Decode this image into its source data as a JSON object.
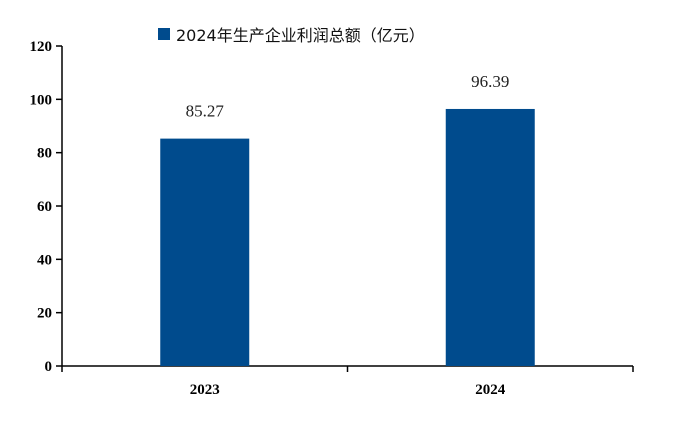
{
  "chart_data": {
    "type": "bar",
    "categories": [
      "2023",
      "2024"
    ],
    "series": [
      {
        "name": "2024年生产企业利润总额（亿元）",
        "values": [
          85.27,
          96.39
        ],
        "color": "#004B8D"
      }
    ],
    "data_labels": [
      "85.27",
      "96.39"
    ],
    "ylim": [
      0,
      120
    ],
    "yticks": [
      0,
      20,
      40,
      60,
      80,
      100,
      120
    ],
    "xlabel": "",
    "ylabel": "",
    "grid": false,
    "legend_position": "top-center"
  }
}
